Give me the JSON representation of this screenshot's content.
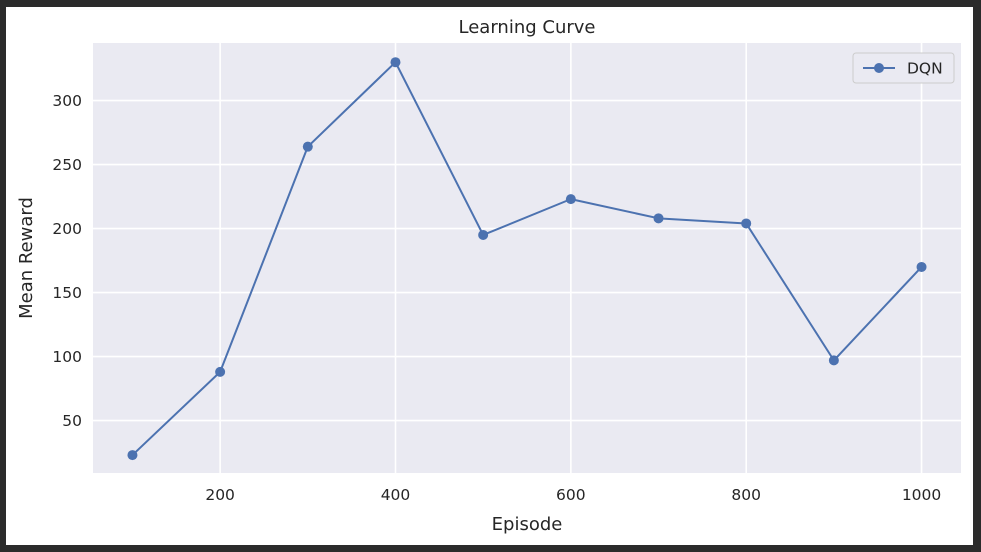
{
  "chart_data": {
    "type": "line",
    "title": "Learning Curve",
    "xlabel": "Episode",
    "ylabel": "Mean Reward",
    "x": [
      100,
      200,
      300,
      400,
      500,
      600,
      700,
      800,
      900,
      1000
    ],
    "series": [
      {
        "name": "DQN",
        "values": [
          23,
          88,
          264,
          330,
          195,
          223,
          208,
          204,
          97,
          170
        ],
        "color": "#4c72b0",
        "marker": "circle"
      }
    ],
    "xticks": [
      200,
      400,
      600,
      800,
      1000
    ],
    "yticks": [
      50,
      100,
      150,
      200,
      250,
      300
    ],
    "xlim": [
      55,
      1045
    ],
    "ylim": [
      9,
      345
    ],
    "grid": true,
    "legend_position": "top-right",
    "background": "#eaeaf2"
  }
}
